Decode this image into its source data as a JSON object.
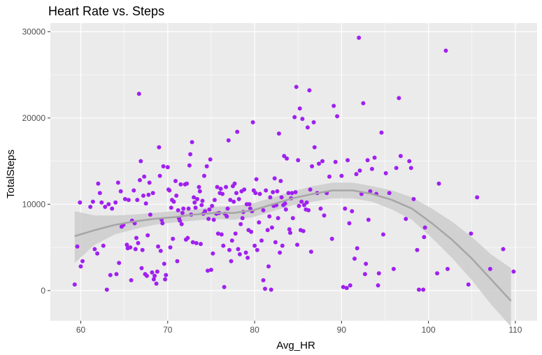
{
  "chart_data": {
    "type": "scatter",
    "title": "Heart Rate vs. Steps",
    "xlabel": "Avg_HR",
    "ylabel": "TotalSteps",
    "xlim": [
      56.5,
      112.5
    ],
    "ylim": [
      -3500,
      31000
    ],
    "x_ticks": [
      60,
      70,
      80,
      90,
      100,
      110
    ],
    "x_tick_labels": [
      "60",
      "70",
      "80",
      "90",
      "100",
      "110"
    ],
    "y_ticks": [
      0,
      10000,
      20000,
      30000
    ],
    "y_tick_labels": [
      "0",
      "10000",
      "20000",
      "30000"
    ],
    "grid": true,
    "legend": "none",
    "colors": {
      "point": "#a020f0",
      "panel": "#ebebeb",
      "grid": "#ffffff",
      "smooth_line": "#a6a6a6",
      "ribbon": "#cccccc"
    },
    "points": [
      [
        59.3,
        700
      ],
      [
        59.6,
        5100
      ],
      [
        59.9,
        10200
      ],
      [
        60.0,
        2800
      ],
      [
        60.2,
        3400
      ],
      [
        61.1,
        9700
      ],
      [
        61.4,
        10300
      ],
      [
        61.6,
        4800
      ],
      [
        61.9,
        4300
      ],
      [
        62.0,
        12400
      ],
      [
        62.2,
        11300
      ],
      [
        62.4,
        10200
      ],
      [
        62.6,
        5200
      ],
      [
        62.8,
        9700
      ],
      [
        63.0,
        100
      ],
      [
        63.2,
        10000
      ],
      [
        63.4,
        1800
      ],
      [
        63.6,
        9500
      ],
      [
        64.0,
        10200
      ],
      [
        64.1,
        1900
      ],
      [
        64.3,
        12500
      ],
      [
        64.4,
        3200
      ],
      [
        64.6,
        11500
      ],
      [
        64.7,
        7400
      ],
      [
        64.9,
        7600
      ],
      [
        65.1,
        10600
      ],
      [
        65.3,
        5300
      ],
      [
        65.4,
        4900
      ],
      [
        65.5,
        10500
      ],
      [
        65.7,
        5000
      ],
      [
        65.8,
        1200
      ],
      [
        65.9,
        8100
      ],
      [
        66.1,
        11600
      ],
      [
        66.2,
        7800
      ],
      [
        66.3,
        4800
      ],
      [
        66.4,
        6100
      ],
      [
        66.5,
        10500
      ],
      [
        66.6,
        5500
      ],
      [
        66.7,
        22800
      ],
      [
        66.8,
        12800
      ],
      [
        66.9,
        15000
      ],
      [
        67.0,
        2600
      ],
      [
        67.1,
        4700
      ],
      [
        67.2,
        11000
      ],
      [
        67.3,
        13200
      ],
      [
        67.4,
        1900
      ],
      [
        67.5,
        10100
      ],
      [
        67.6,
        1700
      ],
      [
        67.7,
        6400
      ],
      [
        67.8,
        11100
      ],
      [
        67.9,
        12500
      ],
      [
        68.0,
        8800
      ],
      [
        68.2,
        2100
      ],
      [
        68.3,
        11300
      ],
      [
        68.4,
        1300
      ],
      [
        68.5,
        1700
      ],
      [
        68.7,
        800
      ],
      [
        68.8,
        2200
      ],
      [
        68.9,
        5100
      ],
      [
        69.0,
        16600
      ],
      [
        69.1,
        13300
      ],
      [
        69.2,
        4600
      ],
      [
        69.3,
        8200
      ],
      [
        69.4,
        7800
      ],
      [
        69.5,
        14400
      ],
      [
        69.6,
        3100
      ],
      [
        69.7,
        1300
      ],
      [
        69.8,
        1800
      ],
      [
        70.0,
        14300
      ],
      [
        70.1,
        11700
      ],
      [
        70.2,
        11600
      ],
      [
        70.3,
        5000
      ],
      [
        70.4,
        9600
      ],
      [
        70.5,
        10500
      ],
      [
        70.6,
        6000
      ],
      [
        70.7,
        10300
      ],
      [
        70.9,
        12700
      ],
      [
        71.0,
        11000
      ],
      [
        71.1,
        3400
      ],
      [
        71.2,
        9300
      ],
      [
        71.3,
        8400
      ],
      [
        71.4,
        8100
      ],
      [
        71.5,
        12300
      ],
      [
        71.6,
        7700
      ],
      [
        71.7,
        9000
      ],
      [
        71.8,
        9500
      ],
      [
        72.0,
        12300
      ],
      [
        72.1,
        5900
      ],
      [
        72.2,
        12400
      ],
      [
        72.3,
        6100
      ],
      [
        72.4,
        9500
      ],
      [
        72.5,
        14500
      ],
      [
        72.6,
        15800
      ],
      [
        72.7,
        8800
      ],
      [
        72.8,
        17200
      ],
      [
        72.9,
        5600
      ],
      [
        73.0,
        10800
      ],
      [
        73.1,
        10200
      ],
      [
        73.2,
        9600
      ],
      [
        73.3,
        5500
      ],
      [
        73.4,
        10600
      ],
      [
        73.6,
        12000
      ],
      [
        73.7,
        11500
      ],
      [
        73.8,
        5400
      ],
      [
        73.9,
        9900
      ],
      [
        74.0,
        10400
      ],
      [
        74.1,
        8900
      ],
      [
        74.2,
        13300
      ],
      [
        74.3,
        9200
      ],
      [
        74.5,
        14400
      ],
      [
        74.6,
        2300
      ],
      [
        74.7,
        8300
      ],
      [
        74.8,
        9400
      ],
      [
        74.9,
        15200
      ],
      [
        75.0,
        2400
      ],
      [
        75.1,
        9800
      ],
      [
        75.2,
        4300
      ],
      [
        75.3,
        8200
      ],
      [
        75.4,
        10500
      ],
      [
        75.6,
        8900
      ],
      [
        75.7,
        12000
      ],
      [
        75.8,
        6600
      ],
      [
        75.9,
        9000
      ],
      [
        76.0,
        11300
      ],
      [
        76.1,
        11800
      ],
      [
        76.2,
        6500
      ],
      [
        76.3,
        11200
      ],
      [
        76.4,
        5200
      ],
      [
        76.5,
        400
      ],
      [
        76.6,
        8900
      ],
      [
        76.7,
        12000
      ],
      [
        76.8,
        8600
      ],
      [
        76.9,
        9500
      ],
      [
        77.0,
        17400
      ],
      [
        77.1,
        4700
      ],
      [
        77.2,
        10500
      ],
      [
        77.3,
        3400
      ],
      [
        77.4,
        5800
      ],
      [
        77.5,
        12100
      ],
      [
        77.6,
        10300
      ],
      [
        77.7,
        12400
      ],
      [
        77.8,
        6600
      ],
      [
        77.9,
        11300
      ],
      [
        78.0,
        18400
      ],
      [
        78.1,
        4800
      ],
      [
        78.2,
        10600
      ],
      [
        78.3,
        4200
      ],
      [
        78.4,
        7700
      ],
      [
        78.5,
        11500
      ],
      [
        78.6,
        8400
      ],
      [
        78.7,
        9100
      ],
      [
        78.8,
        11700
      ],
      [
        79.0,
        4400
      ],
      [
        79.1,
        10000
      ],
      [
        79.2,
        3800
      ],
      [
        79.3,
        7000
      ],
      [
        79.4,
        10000
      ],
      [
        79.5,
        9500
      ],
      [
        79.6,
        6800
      ],
      [
        79.7,
        9200
      ],
      [
        79.8,
        19500
      ],
      [
        79.9,
        11600
      ],
      [
        80.0,
        5200
      ],
      [
        80.1,
        11300
      ],
      [
        80.2,
        12900
      ],
      [
        80.3,
        4700
      ],
      [
        80.5,
        7900
      ],
      [
        80.6,
        11200
      ],
      [
        80.8,
        5800
      ],
      [
        81.0,
        1200
      ],
      [
        81.0,
        9300
      ],
      [
        81.2,
        200
      ],
      [
        81.3,
        11600
      ],
      [
        81.5,
        7000
      ],
      [
        81.6,
        2800
      ],
      [
        81.7,
        8600
      ],
      [
        81.8,
        10800
      ],
      [
        81.9,
        100
      ],
      [
        82.0,
        7300
      ],
      [
        82.1,
        11400
      ],
      [
        82.2,
        9800
      ],
      [
        82.3,
        13000
      ],
      [
        82.4,
        5600
      ],
      [
        82.5,
        9900
      ],
      [
        82.6,
        11500
      ],
      [
        82.7,
        8400
      ],
      [
        82.8,
        18200
      ],
      [
        82.9,
        4400
      ],
      [
        83.0,
        12700
      ],
      [
        83.1,
        10800
      ],
      [
        83.2,
        5200
      ],
      [
        83.3,
        9900
      ],
      [
        83.4,
        15600
      ],
      [
        83.5,
        10100
      ],
      [
        83.6,
        9400
      ],
      [
        83.7,
        15300
      ],
      [
        83.9,
        11300
      ],
      [
        84.0,
        7100
      ],
      [
        84.1,
        6700
      ],
      [
        84.2,
        10700
      ],
      [
        84.3,
        11300
      ],
      [
        84.4,
        8400
      ],
      [
        84.6,
        20100
      ],
      [
        84.7,
        11400
      ],
      [
        84.8,
        23600
      ],
      [
        84.9,
        5300
      ],
      [
        85.0,
        15100
      ],
      [
        85.1,
        9800
      ],
      [
        85.2,
        21100
      ],
      [
        85.3,
        7000
      ],
      [
        85.4,
        10300
      ],
      [
        85.5,
        19900
      ],
      [
        85.6,
        6900
      ],
      [
        85.7,
        9900
      ],
      [
        85.9,
        9400
      ],
      [
        86.0,
        10200
      ],
      [
        86.1,
        18900
      ],
      [
        86.2,
        9300
      ],
      [
        86.3,
        23200
      ],
      [
        86.4,
        11700
      ],
      [
        86.5,
        4500
      ],
      [
        86.6,
        14400
      ],
      [
        86.8,
        19500
      ],
      [
        86.9,
        16600
      ],
      [
        87.2,
        11300
      ],
      [
        87.4,
        14700
      ],
      [
        87.6,
        9500
      ],
      [
        87.8,
        15000
      ],
      [
        88.0,
        8700
      ],
      [
        88.3,
        11300
      ],
      [
        88.6,
        13200
      ],
      [
        88.9,
        6000
      ],
      [
        89.1,
        21400
      ],
      [
        89.3,
        14900
      ],
      [
        89.5,
        20200
      ],
      [
        90.0,
        13300
      ],
      [
        90.2,
        400
      ],
      [
        90.4,
        9500
      ],
      [
        90.6,
        300
      ],
      [
        90.7,
        15100
      ],
      [
        90.9,
        7800
      ],
      [
        91.0,
        600
      ],
      [
        91.2,
        9200
      ],
      [
        91.5,
        3700
      ],
      [
        91.7,
        13500
      ],
      [
        91.8,
        4900
      ],
      [
        92.0,
        29300
      ],
      [
        92.1,
        13900
      ],
      [
        92.3,
        11200
      ],
      [
        92.5,
        21700
      ],
      [
        92.7,
        1900
      ],
      [
        92.8,
        3100
      ],
      [
        93.0,
        15100
      ],
      [
        93.1,
        8200
      ],
      [
        93.3,
        11500
      ],
      [
        93.5,
        14100
      ],
      [
        93.8,
        15400
      ],
      [
        94.0,
        11200
      ],
      [
        94.2,
        600
      ],
      [
        94.3,
        2000
      ],
      [
        94.6,
        18300
      ],
      [
        94.8,
        6500
      ],
      [
        95.1,
        13600
      ],
      [
        95.5,
        11300
      ],
      [
        96.0,
        2500
      ],
      [
        96.3,
        14200
      ],
      [
        96.6,
        22300
      ],
      [
        96.8,
        15600
      ],
      [
        97.4,
        8300
      ],
      [
        97.8,
        15000
      ],
      [
        98.0,
        14200
      ],
      [
        98.3,
        10600
      ],
      [
        98.7,
        4700
      ],
      [
        98.9,
        100
      ],
      [
        99.4,
        100
      ],
      [
        99.5,
        6200
      ],
      [
        99.6,
        7300
      ],
      [
        101.0,
        2000
      ],
      [
        101.2,
        12400
      ],
      [
        102.0,
        27800
      ],
      [
        102.2,
        2500
      ],
      [
        104.6,
        700
      ],
      [
        104.9,
        6600
      ],
      [
        105.6,
        10800
      ],
      [
        107.1,
        2500
      ],
      [
        108.6,
        4800
      ],
      [
        109.8,
        2200
      ]
    ],
    "smooth_curve": {
      "x": [
        59.3,
        61.6,
        63.9,
        66.1,
        68.4,
        70.7,
        73.0,
        75.3,
        77.6,
        79.8,
        82.1,
        84.4,
        86.7,
        89.0,
        91.3,
        93.5,
        95.8,
        98.1,
        100.4,
        102.7,
        105.0,
        107.2,
        109.5
      ],
      "y": [
        6300,
        7000,
        7600,
        8000,
        8300,
        8500,
        8800,
        9000,
        9000,
        9300,
        10000,
        10700,
        11200,
        11600,
        11600,
        11200,
        10500,
        9500,
        7800,
        5900,
        3700,
        1300,
        -1200
      ],
      "lower": [
        3200,
        5300,
        6500,
        7100,
        7600,
        7900,
        8100,
        8300,
        8200,
        8500,
        9200,
        9900,
        10300,
        10700,
        10700,
        10300,
        9400,
        8200,
        6100,
        3800,
        1200,
        -1600,
        -4200
      ],
      "upper": [
        9200,
        8700,
        8700,
        8800,
        9000,
        9200,
        9400,
        9700,
        9800,
        10100,
        10800,
        11500,
        12100,
        12500,
        12500,
        12100,
        11600,
        10800,
        9500,
        8000,
        6200,
        4200,
        2600
      ]
    }
  }
}
